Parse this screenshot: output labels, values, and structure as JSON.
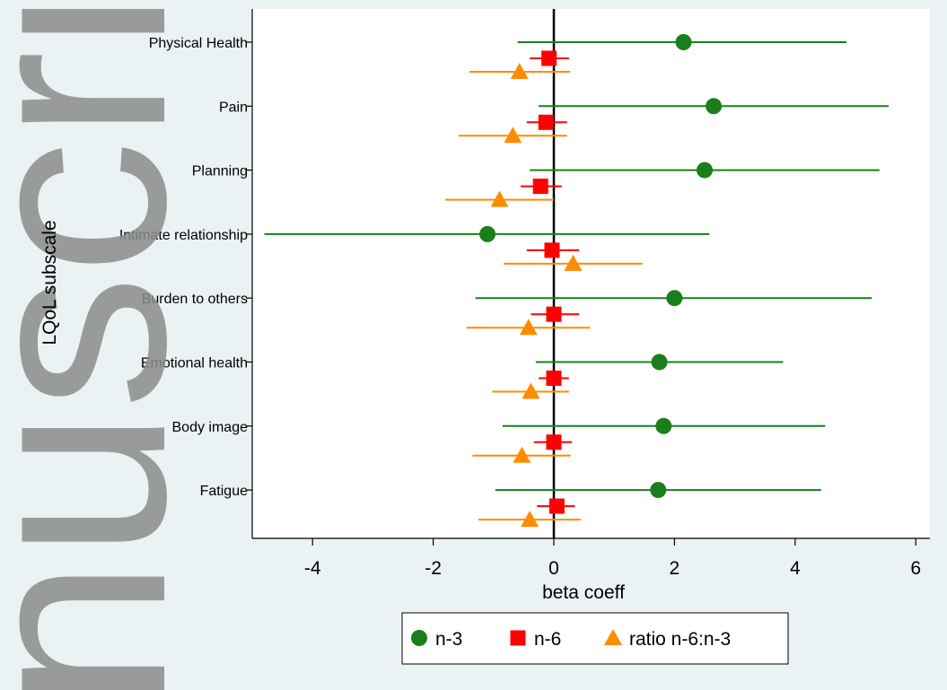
{
  "watermark": "nuscript",
  "chart_data": {
    "type": "scatter",
    "subtype": "forest-plot",
    "xlabel": "beta coeff",
    "ylabel": "LQoL subscale",
    "xlim": [
      -5,
      6.2
    ],
    "xticks": [
      -4,
      -2,
      0,
      2,
      4,
      6
    ],
    "reference_line_x": 0,
    "grid": false,
    "legend_position": "bottom",
    "categories": [
      "Physical Health",
      "Pain",
      "Planning",
      "Intimate relationship",
      "Burden to others",
      "Emotional health",
      "Body image",
      "Fatigue"
    ],
    "series": [
      {
        "name": "n-3",
        "marker": "circle",
        "color": "#1a7f1a",
        "estimates": [
          2.15,
          2.65,
          2.5,
          -1.1,
          2.0,
          1.75,
          1.82,
          1.73
        ],
        "lower": [
          -0.6,
          -0.25,
          -0.4,
          -4.8,
          -1.3,
          -0.3,
          -0.85,
          -0.97
        ],
        "upper": [
          4.85,
          5.55,
          5.4,
          2.58,
          5.27,
          3.8,
          4.5,
          4.43
        ]
      },
      {
        "name": "n-6",
        "marker": "square",
        "color": "#ff0000",
        "estimates": [
          -0.08,
          -0.13,
          -0.22,
          -0.03,
          0.0,
          0.0,
          0.0,
          0.05
        ],
        "lower": [
          -0.4,
          -0.45,
          -0.55,
          -0.45,
          -0.38,
          -0.25,
          -0.33,
          -0.28
        ],
        "upper": [
          0.25,
          0.22,
          0.13,
          0.42,
          0.42,
          0.25,
          0.3,
          0.35
        ]
      },
      {
        "name": "ratio n-6:n-3",
        "marker": "triangle",
        "color": "#ff8c00",
        "estimates": [
          -0.57,
          -0.68,
          -0.9,
          0.32,
          -0.42,
          -0.38,
          -0.53,
          -0.4
        ],
        "lower": [
          -1.4,
          -1.58,
          -1.8,
          -0.83,
          -1.45,
          -1.02,
          -1.35,
          -1.25
        ],
        "upper": [
          0.27,
          0.22,
          0.0,
          1.47,
          0.6,
          0.25,
          0.28,
          0.45
        ]
      }
    ]
  }
}
